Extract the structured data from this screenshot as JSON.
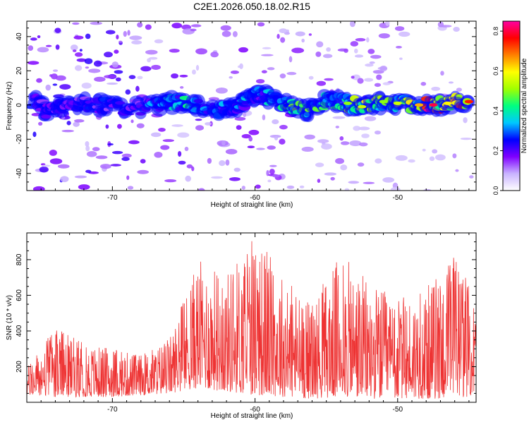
{
  "page": {
    "title": "C2E1.2026.050.18.02.R15"
  },
  "colorbar": {
    "label": "Normalized spectral amplitude",
    "ticks": [
      "0.0",
      "0.2",
      "0.4",
      "0.6",
      "0.8"
    ],
    "range": [
      0.0,
      0.85
    ],
    "colors": [
      "#ffffff",
      "#c9b3ff",
      "#7f00ff",
      "#0000ff",
      "#00c8ff",
      "#00ff80",
      "#a0ff00",
      "#ffff00",
      "#ff8000",
      "#ff0000",
      "#ff00a0"
    ]
  },
  "chart_data": [
    {
      "type": "heatmap",
      "title": "C2E1.2026.050.18.02.R15",
      "xlabel": "Height of straight line (km)",
      "ylabel": "Frequency (Hz)",
      "xlim": [
        -76,
        -44.5
      ],
      "ylim": [
        -50,
        49
      ],
      "xticks": [
        -70,
        -60,
        -50
      ],
      "yticks": [
        -40,
        -20,
        0,
        20,
        40
      ],
      "description_ridge": [
        {
          "x": -75.5,
          "y": 2,
          "amp": 0.15
        },
        {
          "x": -74.5,
          "y": -4,
          "amp": 0.2
        },
        {
          "x": -73.0,
          "y": 0,
          "amp": 0.22
        },
        {
          "x": -71.0,
          "y": 0,
          "amp": 0.25
        },
        {
          "x": -69.0,
          "y": -2,
          "amp": 0.22
        },
        {
          "x": -67.0,
          "y": 0,
          "amp": 0.3
        },
        {
          "x": -66.0,
          "y": 2,
          "amp": 0.35
        },
        {
          "x": -64.5,
          "y": 1,
          "amp": 0.38
        },
        {
          "x": -63.0,
          "y": -3,
          "amp": 0.3
        },
        {
          "x": -61.5,
          "y": -2,
          "amp": 0.3
        },
        {
          "x": -60.5,
          "y": 4,
          "amp": 0.32
        },
        {
          "x": -59.5,
          "y": 6,
          "amp": 0.3
        },
        {
          "x": -58.0,
          "y": 0,
          "amp": 0.45
        },
        {
          "x": -56.5,
          "y": -3,
          "amp": 0.45
        },
        {
          "x": -55.0,
          "y": 3,
          "amp": 0.4
        },
        {
          "x": -53.5,
          "y": 1,
          "amp": 0.5
        },
        {
          "x": -52.5,
          "y": -1,
          "amp": 0.55
        },
        {
          "x": -51.0,
          "y": 2,
          "amp": 0.5
        },
        {
          "x": -50.0,
          "y": 1,
          "amp": 0.55
        },
        {
          "x": -48.5,
          "y": 0,
          "amp": 0.65
        },
        {
          "x": -47.5,
          "y": 0,
          "amp": 0.8
        },
        {
          "x": -46.5,
          "y": 1,
          "amp": 0.6
        },
        {
          "x": -45.0,
          "y": 2,
          "amp": 0.75
        }
      ]
    },
    {
      "type": "line",
      "title": "",
      "xlabel": "Height of straight line (km)",
      "ylabel": "SNR (10 * v/v)",
      "xlim": [
        -76,
        -44.5
      ],
      "ylim": [
        0,
        950
      ],
      "xticks": [
        -70,
        -60,
        -50
      ],
      "yticks": [
        200,
        400,
        600,
        800
      ],
      "series": [
        {
          "name": "SNR",
          "color": "#ee3333",
          "envelope": [
            {
              "x": -76.0,
              "low": 40,
              "high": 200
            },
            {
              "x": -74.0,
              "low": 30,
              "high": 420
            },
            {
              "x": -72.0,
              "low": 30,
              "high": 330
            },
            {
              "x": -70.0,
              "low": 30,
              "high": 300
            },
            {
              "x": -68.0,
              "low": 40,
              "high": 270
            },
            {
              "x": -66.0,
              "low": 50,
              "high": 360
            },
            {
              "x": -64.0,
              "low": 80,
              "high": 800
            },
            {
              "x": -62.0,
              "low": 60,
              "high": 730
            },
            {
              "x": -60.0,
              "low": 40,
              "high": 950
            },
            {
              "x": -58.0,
              "low": 30,
              "high": 720
            },
            {
              "x": -56.0,
              "low": 20,
              "high": 560
            },
            {
              "x": -54.0,
              "low": 30,
              "high": 830
            },
            {
              "x": -52.0,
              "low": 20,
              "high": 680
            },
            {
              "x": -50.0,
              "low": 20,
              "high": 580
            },
            {
              "x": -48.0,
              "low": 20,
              "high": 640
            },
            {
              "x": -46.0,
              "low": 20,
              "high": 850
            },
            {
              "x": -44.5,
              "low": 40,
              "high": 560
            }
          ]
        }
      ]
    }
  ]
}
